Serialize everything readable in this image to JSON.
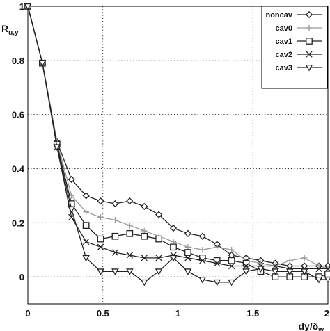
{
  "chart_data": {
    "type": "line",
    "title": "",
    "xlabel": "dy/δw",
    "ylabel": "Ru,y",
    "xlim": [
      0,
      2
    ],
    "ylim": [
      -0.1,
      1
    ],
    "grid": true,
    "legend_position": "top-right",
    "x_ticks": [
      {
        "value": 0,
        "label": "0"
      },
      {
        "value": 0.5,
        "label": "0.5"
      },
      {
        "value": 1,
        "label": "1"
      },
      {
        "value": 1.5,
        "label": "1.5"
      },
      {
        "value": 2,
        "label": "2"
      }
    ],
    "y_ticks": [
      {
        "value": 0,
        "label": "0"
      },
      {
        "value": 0.2,
        "label": "0.2"
      },
      {
        "value": 0.4,
        "label": "0.4"
      },
      {
        "value": 0.6,
        "label": "0.6"
      },
      {
        "value": 0.8,
        "label": "0.8"
      },
      {
        "value": 1,
        "label": "1"
      }
    ],
    "series": [
      {
        "name": "noncav",
        "marker": "diamond",
        "color": "#222222",
        "x": [
          0,
          0.097,
          0.194,
          0.291,
          0.388,
          0.485,
          0.582,
          0.679,
          0.776,
          0.873,
          0.97,
          1.067,
          1.164,
          1.261,
          1.358,
          1.455,
          1.552,
          1.649,
          1.746,
          1.843,
          1.94,
          2.0
        ],
        "y": [
          1.0,
          0.79,
          0.5,
          0.36,
          0.3,
          0.28,
          0.27,
          0.28,
          0.26,
          0.23,
          0.18,
          0.16,
          0.15,
          0.12,
          0.08,
          0.07,
          0.06,
          0.05,
          0.04,
          0.04,
          0.04,
          0.04
        ]
      },
      {
        "name": "cav0",
        "marker": "plus",
        "color": "#9a9a9a",
        "x": [
          0,
          0.097,
          0.194,
          0.291,
          0.388,
          0.485,
          0.582,
          0.679,
          0.776,
          0.873,
          0.97,
          1.067,
          1.164,
          1.261,
          1.358,
          1.455,
          1.552,
          1.649,
          1.746,
          1.843,
          1.94,
          2.0
        ],
        "y": [
          1.0,
          0.79,
          0.5,
          0.3,
          0.24,
          0.22,
          0.21,
          0.19,
          0.17,
          0.15,
          0.13,
          0.11,
          0.1,
          0.11,
          0.1,
          0.06,
          0.05,
          0.04,
          0.06,
          0.07,
          0.04,
          0.03
        ]
      },
      {
        "name": "cav1",
        "marker": "square",
        "color": "#222222",
        "x": [
          0,
          0.097,
          0.194,
          0.291,
          0.388,
          0.485,
          0.582,
          0.679,
          0.776,
          0.873,
          0.97,
          1.067,
          1.164,
          1.261,
          1.358,
          1.455,
          1.552,
          1.649,
          1.746,
          1.843,
          1.94,
          2.0
        ],
        "y": [
          1.0,
          0.79,
          0.49,
          0.27,
          0.19,
          0.14,
          0.15,
          0.16,
          0.15,
          0.14,
          0.11,
          0.09,
          0.07,
          0.06,
          0.06,
          0.05,
          0.02,
          0.0,
          0.0,
          0.0,
          0.0,
          0.01
        ]
      },
      {
        "name": "cav2",
        "marker": "x",
        "color": "#222222",
        "x": [
          0,
          0.097,
          0.194,
          0.291,
          0.388,
          0.485,
          0.582,
          0.679,
          0.776,
          0.873,
          0.97,
          1.067,
          1.164,
          1.261,
          1.358,
          1.455,
          1.552,
          1.649,
          1.746,
          1.843,
          1.94,
          2.0
        ],
        "y": [
          1.0,
          0.79,
          0.48,
          0.22,
          0.13,
          0.11,
          0.09,
          0.08,
          0.07,
          0.07,
          0.08,
          0.07,
          0.06,
          0.05,
          0.04,
          0.04,
          0.04,
          0.04,
          0.03,
          0.03,
          0.03,
          0.03
        ]
      },
      {
        "name": "cav3",
        "marker": "triangle-down",
        "color": "#222222",
        "x": [
          0,
          0.097,
          0.194,
          0.291,
          0.388,
          0.485,
          0.582,
          0.679,
          0.776,
          0.873,
          0.97,
          1.067,
          1.164,
          1.261,
          1.358,
          1.455,
          1.552,
          1.649,
          1.746,
          1.843,
          1.94,
          2.0
        ],
        "y": [
          1.0,
          0.79,
          0.48,
          0.25,
          0.07,
          0.02,
          0.02,
          0.02,
          -0.02,
          0.02,
          0.07,
          0.02,
          -0.01,
          -0.02,
          -0.02,
          0.02,
          0.03,
          0.02,
          0.02,
          0.02,
          -0.01,
          -0.01
        ]
      }
    ]
  }
}
